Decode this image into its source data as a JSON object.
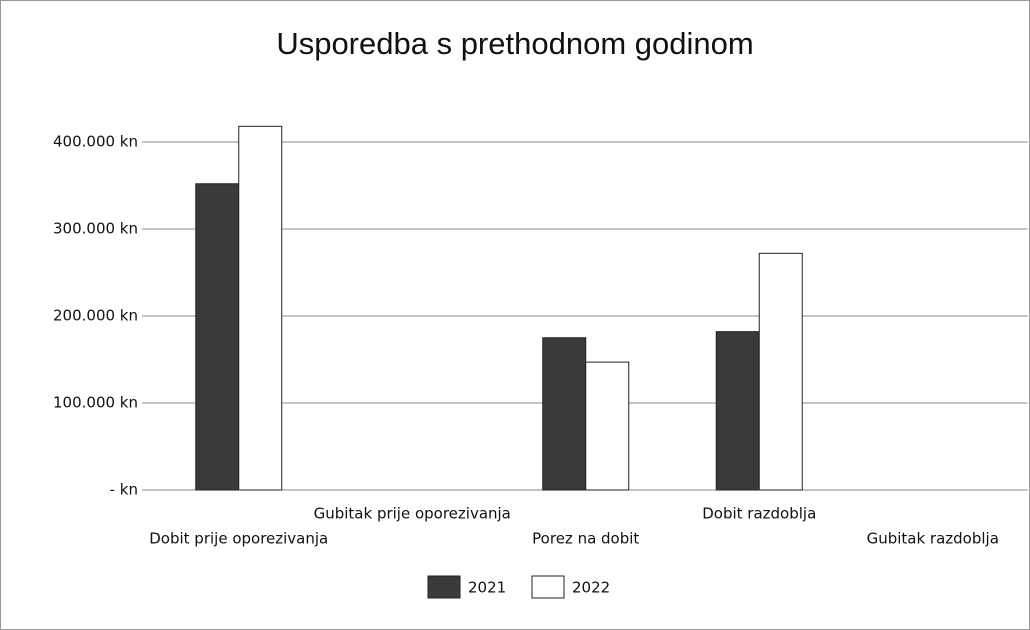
{
  "chart_data": {
    "type": "bar",
    "title": "Usporedba s prethodnom godinom",
    "categories": [
      "Dobit prije oporezivanja",
      "Gubitak prije oporezivanja",
      "Porez na dobit",
      "Dobit razdoblja",
      "Gubitak razdoblja"
    ],
    "series": [
      {
        "name": "2021",
        "color": "#3a3a3a",
        "values": [
          352000,
          0,
          175000,
          182000,
          0
        ]
      },
      {
        "name": "2022",
        "color": "#ffffff",
        "values": [
          418000,
          0,
          147000,
          272000,
          0
        ]
      }
    ],
    "ylim": [
      0,
      450000
    ],
    "yticks": [
      {
        "value": 0,
        "label": "- kn"
      },
      {
        "value": 100000,
        "label": "100.000 kn"
      },
      {
        "value": 200000,
        "label": "200.000 kn"
      },
      {
        "value": 300000,
        "label": "300.000 kn"
      },
      {
        "value": 400000,
        "label": "400.000 kn"
      }
    ],
    "grid": true,
    "legend": "bottom"
  }
}
